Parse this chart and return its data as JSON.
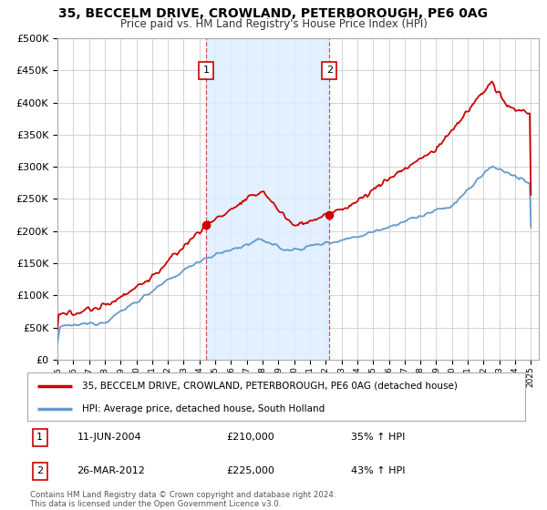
{
  "title": "35, BECCELM DRIVE, CROWLAND, PETERBOROUGH, PE6 0AG",
  "subtitle": "Price paid vs. HM Land Registry's House Price Index (HPI)",
  "legend_line1": "35, BECCELM DRIVE, CROWLAND, PETERBOROUGH, PE6 0AG (detached house)",
  "legend_line2": "HPI: Average price, detached house, South Holland",
  "sale1_date": "11-JUN-2004",
  "sale1_price": "£210,000",
  "sale1_hpi": "35% ↑ HPI",
  "sale2_date": "26-MAR-2012",
  "sale2_price": "£225,000",
  "sale2_hpi": "43% ↑ HPI",
  "copyright": "Contains HM Land Registry data © Crown copyright and database right 2024.\nThis data is licensed under the Open Government Licence v3.0.",
  "red_color": "#cc0000",
  "blue_color": "#6699cc",
  "sale1_x": 2004.44,
  "sale1_y": 210000,
  "sale2_x": 2012.23,
  "sale2_y": 225000,
  "ylim": [
    0,
    500000
  ],
  "xlim": [
    1995.0,
    2025.5
  ],
  "plot_bg": "#ffffff",
  "shade_color": "#ddeeff"
}
